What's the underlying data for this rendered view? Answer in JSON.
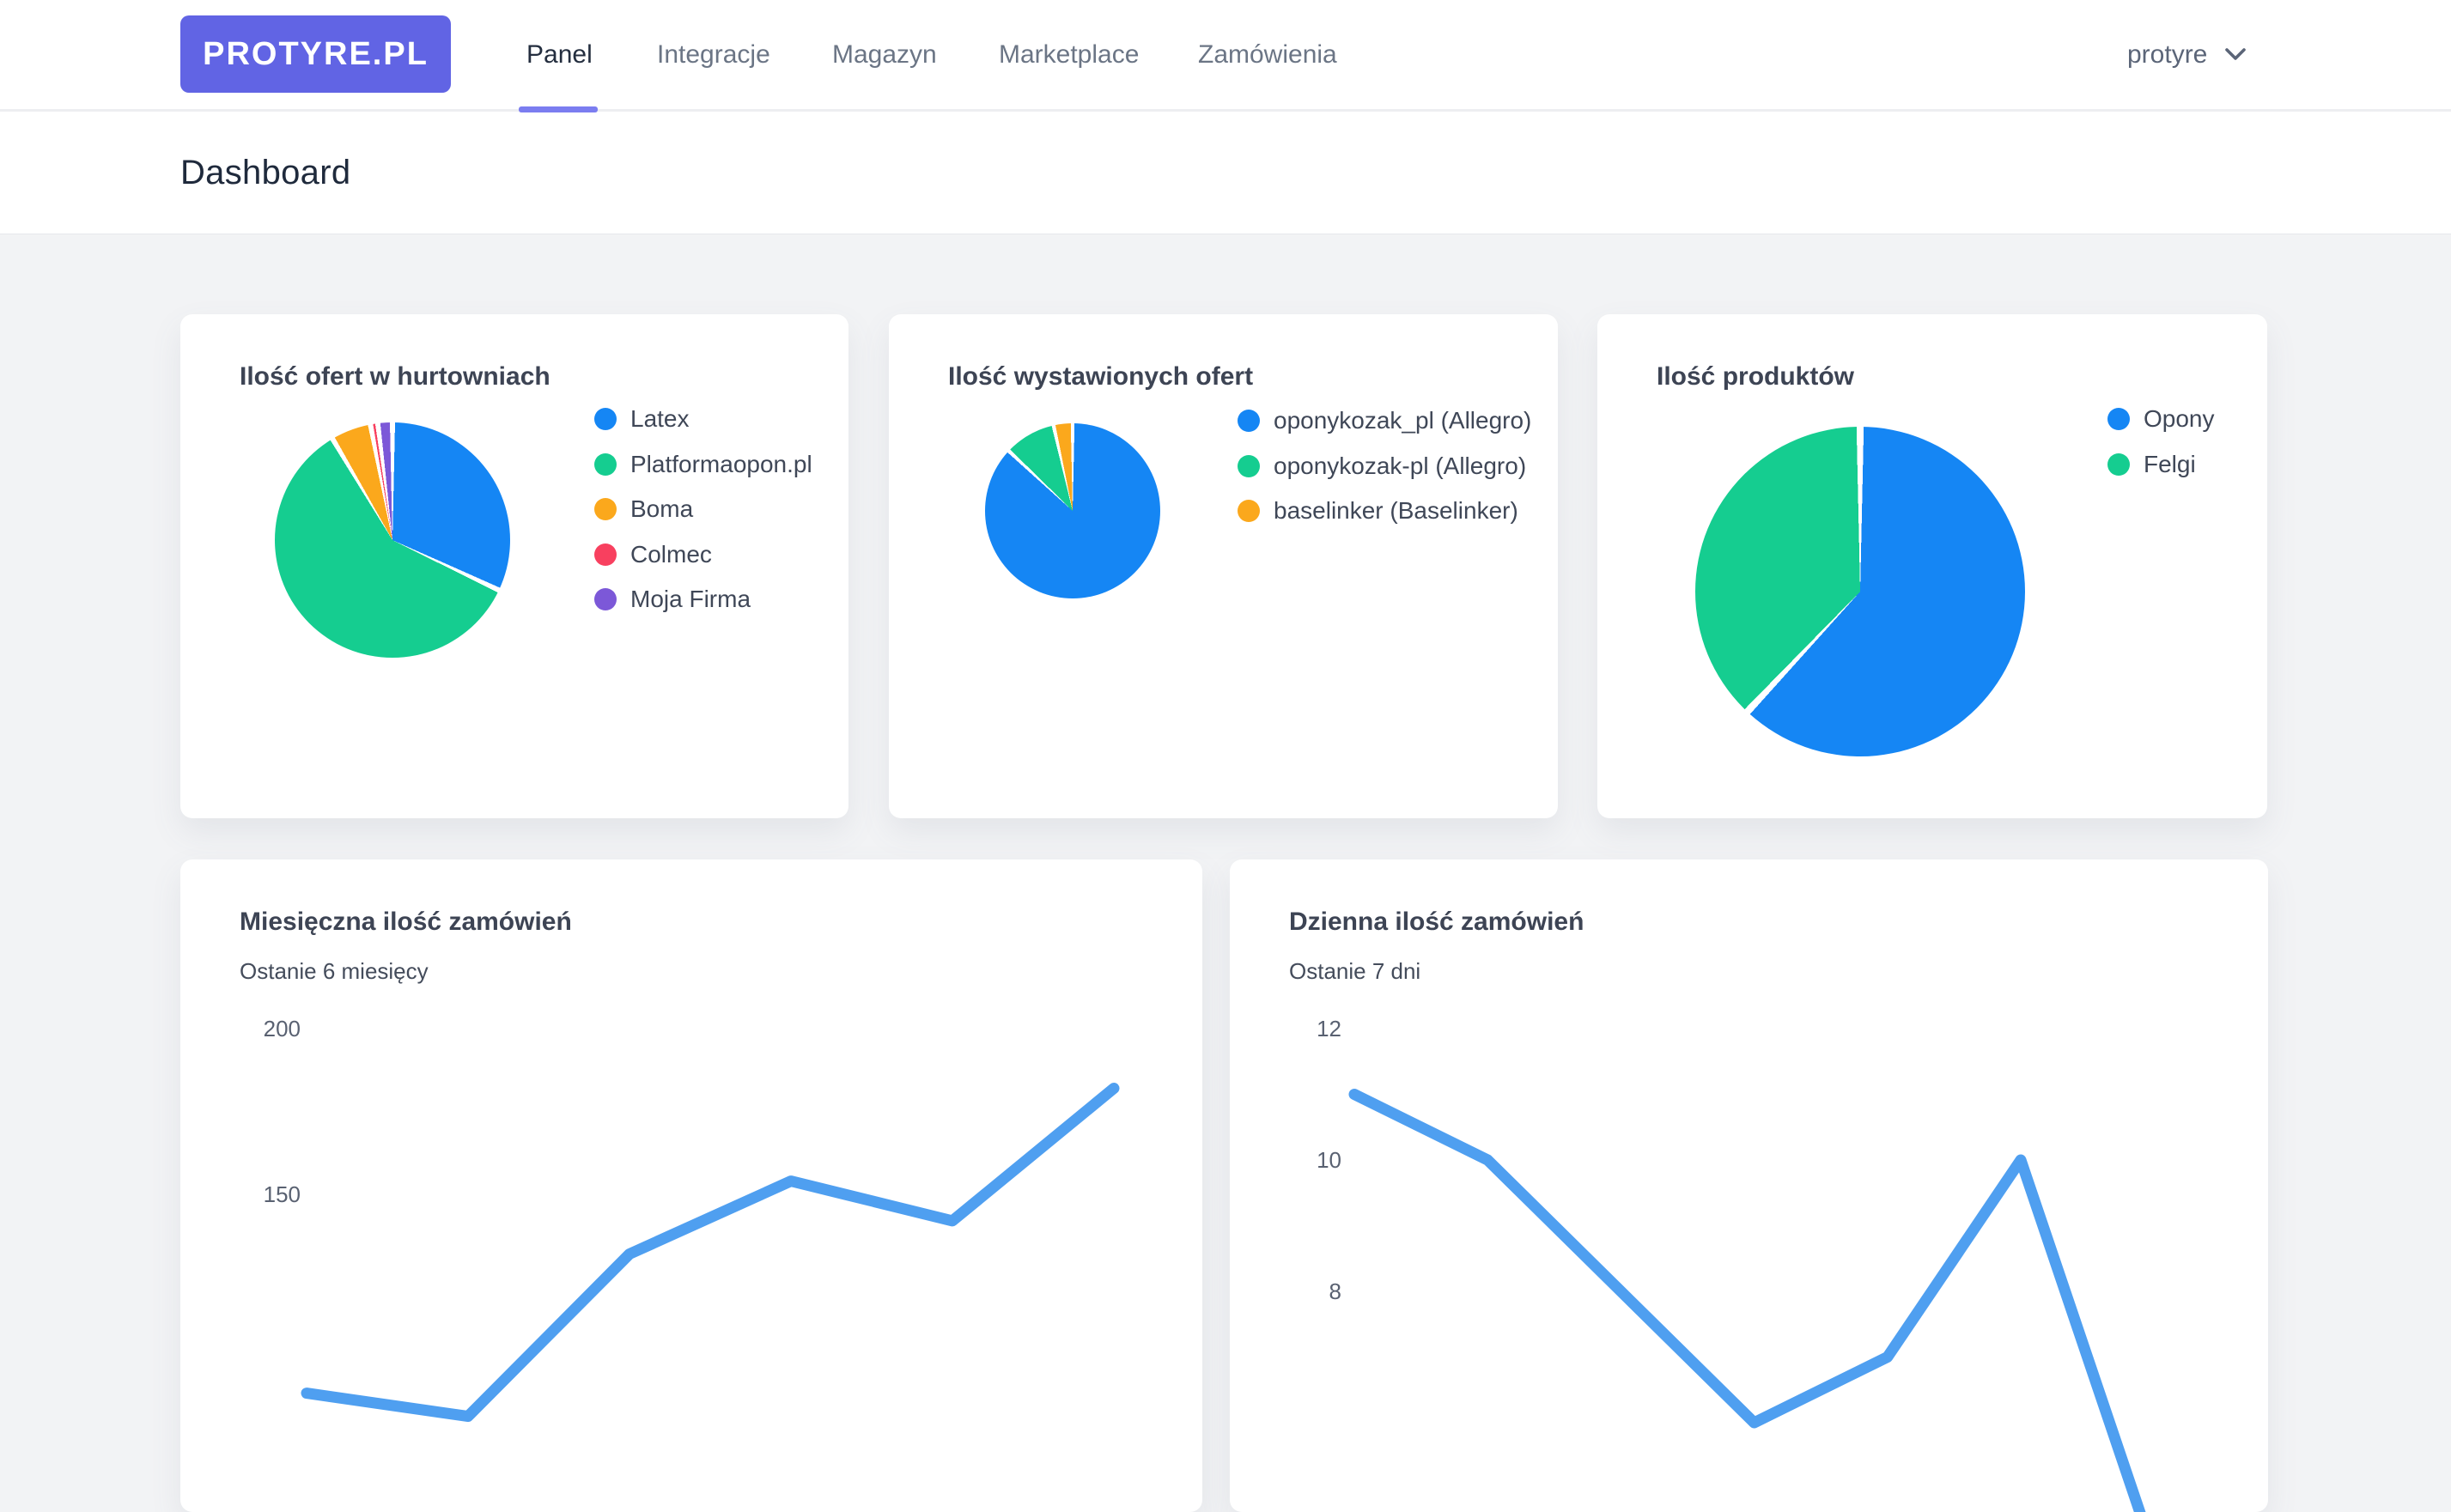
{
  "brand": {
    "logo_text": "PROTYRE.PL"
  },
  "nav": {
    "tabs": [
      {
        "label": "Panel",
        "active": true
      },
      {
        "label": "Integracje",
        "active": false
      },
      {
        "label": "Magazyn",
        "active": false
      },
      {
        "label": "Marketplace",
        "active": false
      },
      {
        "label": "Zamówienia",
        "active": false
      }
    ],
    "user": {
      "name": "protyre"
    }
  },
  "page": {
    "title": "Dashboard"
  },
  "chart_data": [
    {
      "id": "offers-in-wholesalers",
      "type": "pie",
      "title": "Ilość ofert w hurtowniach",
      "labels": [
        "Latex",
        "Platformaopon.pl",
        "Boma",
        "Colmec",
        "Moja Firma"
      ],
      "values": [
        32,
        59.5,
        5.5,
        1,
        2
      ],
      "unit": "percent-estimated",
      "colors": [
        "#1586f4",
        "#15cd90",
        "#fba81c",
        "#f8405f",
        "#7c58d8"
      ],
      "legend_position": "right"
    },
    {
      "id": "listed-offers",
      "type": "pie",
      "title": "Ilość wystawionych ofert",
      "labels": [
        "oponykozak_pl (Allegro)",
        "oponykozak-pl (Allegro)",
        "baselinker (Baselinker)"
      ],
      "values": [
        87,
        9.5,
        3.5
      ],
      "unit": "percent-estimated",
      "colors": [
        "#1586f4",
        "#15cd90",
        "#fba81c"
      ],
      "legend_position": "right"
    },
    {
      "id": "product-count",
      "type": "pie",
      "title": "Ilość produktów",
      "labels": [
        "Opony",
        "Felgi"
      ],
      "values": [
        62,
        38
      ],
      "unit": "percent-estimated",
      "colors": [
        "#1586f4",
        "#15cd90"
      ],
      "legend_position": "right"
    },
    {
      "id": "monthly-orders",
      "type": "line",
      "title": "Miesięczna ilość zamówień",
      "subtitle": "Ostanie 6 miesięcy",
      "x": [
        1,
        2,
        3,
        4,
        5,
        6
      ],
      "values": [
        90,
        83,
        132,
        154,
        142,
        182
      ],
      "visible_yticks": [
        200,
        150
      ],
      "ylim": [
        100,
        200
      ],
      "grid": false,
      "line_color": "#4f9ff0",
      "note": "x-axis labels cut off at bottom of viewport; first two points below visible area"
    },
    {
      "id": "daily-orders",
      "type": "line",
      "title": "Dzienna ilość zamówień",
      "subtitle": "Ostanie 7 dni",
      "x": [
        1,
        2,
        3,
        4,
        5,
        6,
        7
      ],
      "values": [
        11,
        10,
        8,
        6,
        7,
        10,
        4
      ],
      "visible_yticks": [
        12,
        10,
        8
      ],
      "ylim": [
        6,
        12
      ],
      "grid": false,
      "line_color": "#4f9ff0",
      "note": "x-axis labels cut off at bottom of viewport; points 4 and 7 below visible area"
    }
  ]
}
